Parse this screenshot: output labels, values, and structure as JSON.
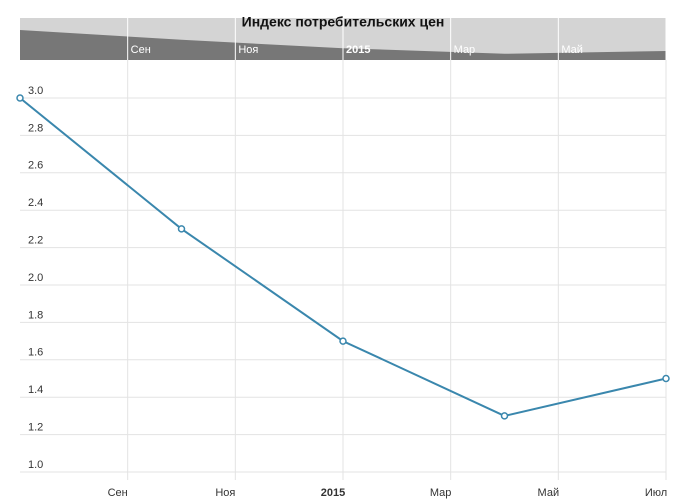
{
  "chart_data": {
    "type": "line",
    "title": "Индекс потребительских цен",
    "x": [
      "2014-07",
      "2014-10",
      "2015-01",
      "2015-04",
      "2015-07"
    ],
    "series": [
      {
        "name": "Индекс потребительских цен",
        "color": "#3a87ad",
        "values": [
          3.0,
          2.3,
          1.7,
          1.3,
          1.5
        ]
      }
    ],
    "xlim": [
      "2014-07",
      "2015-07"
    ],
    "xticks": [
      {
        "value": "2014-09",
        "label": "Сен"
      },
      {
        "value": "2014-11",
        "label": "Ноя"
      },
      {
        "value": "2015-01",
        "label": "2015"
      },
      {
        "value": "2015-03",
        "label": "Мар"
      },
      {
        "value": "2015-05",
        "label": "Май"
      },
      {
        "value": "2015-07",
        "label": "Июл"
      }
    ],
    "ylim": [
      1.0,
      3.0
    ],
    "yticks": [
      {
        "value": 1.0,
        "label": "1.0"
      },
      1.2,
      1.4,
      1.6,
      1.8,
      {
        "value": 2.0,
        "label": "2.0"
      },
      2.2,
      2.4,
      2.6,
      2.8,
      {
        "value": 3.0,
        "label": "3.0"
      }
    ],
    "grid": true
  }
}
